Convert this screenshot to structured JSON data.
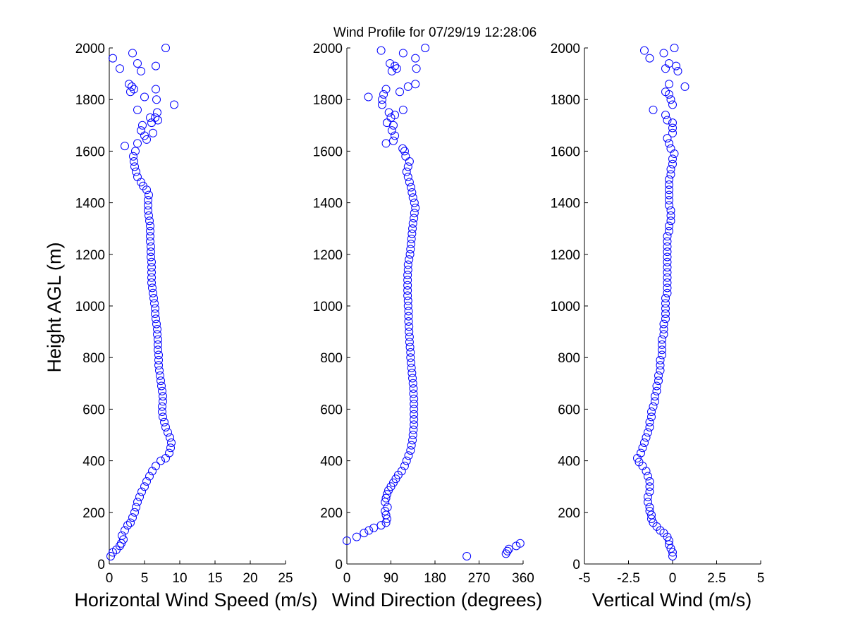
{
  "title": "Wind Profile for  07/29/19 12:28:06",
  "ylabel": "Height AGL (m)",
  "marker_color": "#0000FF",
  "chart_data": [
    {
      "type": "scatter",
      "xlabel": "Horizontal Wind Speed (m/s)",
      "xlim": [
        0,
        25
      ],
      "ylim": [
        0,
        2000
      ],
      "xticks": [
        0,
        5,
        10,
        15,
        20,
        25
      ],
      "xtick_labels": [
        "0",
        "5",
        "10",
        "15",
        "20",
        "25"
      ],
      "yticks": [
        0,
        200,
        400,
        600,
        800,
        1000,
        1200,
        1400,
        1600,
        1800,
        2000
      ],
      "ytick_labels": [
        "0",
        "200",
        "400",
        "600",
        "800",
        "1000",
        "1200",
        "1400",
        "1600",
        "1800",
        "2000"
      ],
      "points": [
        [
          0.2,
          30
        ],
        [
          0.5,
          45
        ],
        [
          1.0,
          55
        ],
        [
          1.5,
          70
        ],
        [
          1.7,
          80
        ],
        [
          2.0,
          95
        ],
        [
          1.8,
          110
        ],
        [
          2.2,
          130
        ],
        [
          2.6,
          150
        ],
        [
          3.0,
          160
        ],
        [
          3.3,
          180
        ],
        [
          3.6,
          200
        ],
        [
          3.8,
          220
        ],
        [
          4.0,
          240
        ],
        [
          4.3,
          260
        ],
        [
          4.6,
          280
        ],
        [
          5.0,
          300
        ],
        [
          5.3,
          320
        ],
        [
          5.7,
          340
        ],
        [
          6.1,
          360
        ],
        [
          6.6,
          380
        ],
        [
          7.3,
          400
        ],
        [
          8.0,
          410
        ],
        [
          8.5,
          430
        ],
        [
          8.7,
          450
        ],
        [
          8.8,
          470
        ],
        [
          8.6,
          490
        ],
        [
          8.3,
          510
        ],
        [
          8.0,
          530
        ],
        [
          7.8,
          550
        ],
        [
          7.6,
          570
        ],
        [
          7.5,
          590
        ],
        [
          7.5,
          610
        ],
        [
          7.6,
          630
        ],
        [
          7.6,
          650
        ],
        [
          7.5,
          670
        ],
        [
          7.4,
          690
        ],
        [
          7.3,
          710
        ],
        [
          7.2,
          730
        ],
        [
          7.1,
          750
        ],
        [
          7.0,
          770
        ],
        [
          7.0,
          790
        ],
        [
          7.0,
          810
        ],
        [
          6.9,
          830
        ],
        [
          6.9,
          850
        ],
        [
          6.9,
          870
        ],
        [
          6.8,
          890
        ],
        [
          6.8,
          910
        ],
        [
          6.7,
          930
        ],
        [
          6.6,
          950
        ],
        [
          6.5,
          970
        ],
        [
          6.5,
          990
        ],
        [
          6.4,
          1010
        ],
        [
          6.3,
          1030
        ],
        [
          6.2,
          1050
        ],
        [
          6.1,
          1070
        ],
        [
          6.0,
          1090
        ],
        [
          6.0,
          1110
        ],
        [
          6.0,
          1130
        ],
        [
          6.0,
          1150
        ],
        [
          6.0,
          1170
        ],
        [
          5.9,
          1190
        ],
        [
          5.9,
          1210
        ],
        [
          5.9,
          1230
        ],
        [
          5.8,
          1250
        ],
        [
          5.8,
          1270
        ],
        [
          5.8,
          1290
        ],
        [
          5.8,
          1310
        ],
        [
          5.7,
          1330
        ],
        [
          5.6,
          1350
        ],
        [
          5.5,
          1370
        ],
        [
          5.5,
          1390
        ],
        [
          5.5,
          1410
        ],
        [
          5.6,
          1430
        ],
        [
          5.3,
          1450
        ],
        [
          4.8,
          1465
        ],
        [
          4.5,
          1480
        ],
        [
          4.0,
          1500
        ],
        [
          3.8,
          1520
        ],
        [
          3.6,
          1540
        ],
        [
          3.5,
          1560
        ],
        [
          3.4,
          1580
        ],
        [
          3.7,
          1600
        ],
        [
          2.2,
          1620
        ],
        [
          4.0,
          1630
        ],
        [
          5.3,
          1645
        ],
        [
          5.0,
          1660
        ],
        [
          4.5,
          1680
        ],
        [
          4.7,
          1700
        ],
        [
          6.2,
          1670
        ],
        [
          6.0,
          1710
        ],
        [
          6.9,
          1720
        ],
        [
          6.8,
          1750
        ],
        [
          6.5,
          1730
        ],
        [
          5.8,
          1730
        ],
        [
          4.0,
          1760
        ],
        [
          9.2,
          1780
        ],
        [
          6.7,
          1800
        ],
        [
          5.0,
          1810
        ],
        [
          3.0,
          1830
        ],
        [
          3.5,
          1840
        ],
        [
          6.6,
          1840
        ],
        [
          3.2,
          1850
        ],
        [
          2.8,
          1860
        ],
        [
          4.5,
          1910
        ],
        [
          4.0,
          1940
        ],
        [
          6.6,
          1930
        ],
        [
          1.5,
          1920
        ],
        [
          0.5,
          1960
        ],
        [
          3.3,
          1980
        ],
        [
          8.0,
          2000
        ]
      ]
    },
    {
      "type": "scatter",
      "xlabel": "Wind Direction (degrees)",
      "xlim": [
        0,
        360
      ],
      "ylim": [
        0,
        2000
      ],
      "xticks": [
        0,
        90,
        180,
        270,
        360
      ],
      "xtick_labels": [
        "0",
        "90",
        "180",
        "270",
        "360"
      ],
      "yticks": [
        0,
        200,
        400,
        600,
        800,
        1000,
        1200,
        1400,
        1600,
        1800,
        2000
      ],
      "ytick_labels": [
        "0",
        "200",
        "400",
        "600",
        "800",
        "1000",
        "1200",
        "1400",
        "1600",
        "1800",
        "2000"
      ],
      "points": [
        [
          245,
          30
        ],
        [
          325,
          40
        ],
        [
          328,
          50
        ],
        [
          331,
          58
        ],
        [
          346,
          70
        ],
        [
          354,
          80
        ],
        [
          0,
          90
        ],
        [
          20,
          105
        ],
        [
          35,
          120
        ],
        [
          45,
          130
        ],
        [
          55,
          140
        ],
        [
          70,
          150
        ],
        [
          80,
          160
        ],
        [
          82,
          175
        ],
        [
          80,
          190
        ],
        [
          78,
          205
        ],
        [
          83,
          220
        ],
        [
          78,
          240
        ],
        [
          80,
          255
        ],
        [
          82,
          270
        ],
        [
          85,
          285
        ],
        [
          90,
          300
        ],
        [
          95,
          315
        ],
        [
          100,
          330
        ],
        [
          105,
          345
        ],
        [
          112,
          360
        ],
        [
          118,
          380
        ],
        [
          122,
          400
        ],
        [
          126,
          420
        ],
        [
          130,
          440
        ],
        [
          132,
          460
        ],
        [
          134,
          480
        ],
        [
          135,
          500
        ],
        [
          136,
          520
        ],
        [
          137,
          540
        ],
        [
          137,
          560
        ],
        [
          137,
          580
        ],
        [
          137,
          600
        ],
        [
          137,
          620
        ],
        [
          137,
          640
        ],
        [
          136,
          660
        ],
        [
          136,
          680
        ],
        [
          135,
          700
        ],
        [
          134,
          720
        ],
        [
          133,
          740
        ],
        [
          132,
          760
        ],
        [
          131,
          780
        ],
        [
          130,
          800
        ],
        [
          130,
          820
        ],
        [
          129,
          840
        ],
        [
          128,
          860
        ],
        [
          128,
          880
        ],
        [
          127,
          900
        ],
        [
          127,
          920
        ],
        [
          126,
          940
        ],
        [
          126,
          960
        ],
        [
          126,
          980
        ],
        [
          125,
          1000
        ],
        [
          125,
          1020
        ],
        [
          124,
          1040
        ],
        [
          124,
          1060
        ],
        [
          124,
          1080
        ],
        [
          124,
          1100
        ],
        [
          124,
          1120
        ],
        [
          125,
          1140
        ],
        [
          125,
          1160
        ],
        [
          127,
          1180
        ],
        [
          129,
          1200
        ],
        [
          130,
          1220
        ],
        [
          131,
          1240
        ],
        [
          132,
          1260
        ],
        [
          133,
          1280
        ],
        [
          134,
          1300
        ],
        [
          135,
          1320
        ],
        [
          137,
          1340
        ],
        [
          138,
          1360
        ],
        [
          140,
          1380
        ],
        [
          138,
          1400
        ],
        [
          135,
          1420
        ],
        [
          133,
          1440
        ],
        [
          131,
          1460
        ],
        [
          128,
          1480
        ],
        [
          125,
          1500
        ],
        [
          122,
          1520
        ],
        [
          125,
          1540
        ],
        [
          128,
          1560
        ],
        [
          120,
          1580
        ],
        [
          118,
          1600
        ],
        [
          114,
          1610
        ],
        [
          80,
          1630
        ],
        [
          95,
          1640
        ],
        [
          98,
          1660
        ],
        [
          92,
          1680
        ],
        [
          95,
          1700
        ],
        [
          82,
          1710
        ],
        [
          90,
          1730
        ],
        [
          98,
          1740
        ],
        [
          86,
          1750
        ],
        [
          115,
          1760
        ],
        [
          72,
          1780
        ],
        [
          72,
          1800
        ],
        [
          75,
          1820
        ],
        [
          80,
          1840
        ],
        [
          108,
          1830
        ],
        [
          44,
          1810
        ],
        [
          140,
          1860
        ],
        [
          125,
          1850
        ],
        [
          92,
          1910
        ],
        [
          102,
          1920
        ],
        [
          98,
          1930
        ],
        [
          88,
          1940
        ],
        [
          142,
          1920
        ],
        [
          140,
          1960
        ],
        [
          115,
          1980
        ],
        [
          70,
          1990
        ],
        [
          160,
          2000
        ]
      ]
    },
    {
      "type": "scatter",
      "xlabel": "Vertical Wind (m/s)",
      "xlim": [
        -5,
        5
      ],
      "ylim": [
        0,
        2000
      ],
      "xticks": [
        -5,
        -2.5,
        0,
        2.5,
        5
      ],
      "xtick_labels": [
        "-5",
        "-2.5",
        "0",
        "2.5",
        "5"
      ],
      "yticks": [
        0,
        200,
        400,
        600,
        800,
        1000,
        1200,
        1400,
        1600,
        1800,
        2000
      ],
      "ytick_labels": [
        "0",
        "200",
        "400",
        "600",
        "800",
        "1000",
        "1200",
        "1400",
        "1600",
        "1800",
        "2000"
      ],
      "points": [
        [
          0.0,
          30
        ],
        [
          0.0,
          45
        ],
        [
          -0.1,
          60
        ],
        [
          -0.2,
          75
        ],
        [
          -0.2,
          90
        ],
        [
          -0.3,
          105
        ],
        [
          -0.5,
          120
        ],
        [
          -0.7,
          130
        ],
        [
          -0.9,
          145
        ],
        [
          -1.1,
          160
        ],
        [
          -1.2,
          175
        ],
        [
          -1.2,
          190
        ],
        [
          -1.3,
          205
        ],
        [
          -1.3,
          220
        ],
        [
          -1.4,
          240
        ],
        [
          -1.4,
          260
        ],
        [
          -1.3,
          280
        ],
        [
          -1.3,
          300
        ],
        [
          -1.3,
          320
        ],
        [
          -1.4,
          340
        ],
        [
          -1.5,
          360
        ],
        [
          -1.7,
          380
        ],
        [
          -1.9,
          395
        ],
        [
          -2.0,
          410
        ],
        [
          -1.8,
          430
        ],
        [
          -1.7,
          450
        ],
        [
          -1.6,
          470
        ],
        [
          -1.5,
          490
        ],
        [
          -1.4,
          510
        ],
        [
          -1.3,
          530
        ],
        [
          -1.3,
          550
        ],
        [
          -1.2,
          570
        ],
        [
          -1.2,
          590
        ],
        [
          -1.1,
          610
        ],
        [
          -1.0,
          630
        ],
        [
          -1.0,
          650
        ],
        [
          -0.9,
          670
        ],
        [
          -0.9,
          690
        ],
        [
          -0.8,
          710
        ],
        [
          -0.8,
          730
        ],
        [
          -0.7,
          750
        ],
        [
          -0.7,
          770
        ],
        [
          -0.7,
          790
        ],
        [
          -0.6,
          810
        ],
        [
          -0.6,
          830
        ],
        [
          -0.6,
          850
        ],
        [
          -0.6,
          870
        ],
        [
          -0.5,
          890
        ],
        [
          -0.5,
          910
        ],
        [
          -0.5,
          930
        ],
        [
          -0.4,
          950
        ],
        [
          -0.4,
          970
        ],
        [
          -0.4,
          990
        ],
        [
          -0.4,
          1010
        ],
        [
          -0.4,
          1030
        ],
        [
          -0.3,
          1050
        ],
        [
          -0.3,
          1070
        ],
        [
          -0.3,
          1090
        ],
        [
          -0.3,
          1110
        ],
        [
          -0.3,
          1130
        ],
        [
          -0.3,
          1150
        ],
        [
          -0.3,
          1170
        ],
        [
          -0.3,
          1190
        ],
        [
          -0.3,
          1210
        ],
        [
          -0.3,
          1230
        ],
        [
          -0.3,
          1250
        ],
        [
          -0.3,
          1270
        ],
        [
          -0.2,
          1290
        ],
        [
          -0.2,
          1310
        ],
        [
          -0.1,
          1330
        ],
        [
          -0.1,
          1350
        ],
        [
          -0.1,
          1370
        ],
        [
          -0.2,
          1390
        ],
        [
          -0.2,
          1410
        ],
        [
          -0.2,
          1430
        ],
        [
          -0.2,
          1450
        ],
        [
          -0.2,
          1470
        ],
        [
          -0.2,
          1490
        ],
        [
          -0.1,
          1510
        ],
        [
          -0.1,
          1530
        ],
        [
          0.0,
          1550
        ],
        [
          0.0,
          1570
        ],
        [
          0.1,
          1590
        ],
        [
          -0.1,
          1610
        ],
        [
          -0.2,
          1630
        ],
        [
          -0.3,
          1650
        ],
        [
          0.0,
          1670
        ],
        [
          0.0,
          1690
        ],
        [
          0.0,
          1710
        ],
        [
          -0.3,
          1720
        ],
        [
          -0.4,
          1740
        ],
        [
          -1.1,
          1760
        ],
        [
          0.0,
          1780
        ],
        [
          -0.1,
          1800
        ],
        [
          -0.2,
          1820
        ],
        [
          -0.4,
          1830
        ],
        [
          -0.2,
          1860
        ],
        [
          0.7,
          1850
        ],
        [
          -0.4,
          1920
        ],
        [
          0.2,
          1930
        ],
        [
          0.3,
          1910
        ],
        [
          -0.2,
          1940
        ],
        [
          -1.3,
          1960
        ],
        [
          -0.5,
          1980
        ],
        [
          -1.6,
          1990
        ],
        [
          0.1,
          2000
        ]
      ]
    }
  ]
}
